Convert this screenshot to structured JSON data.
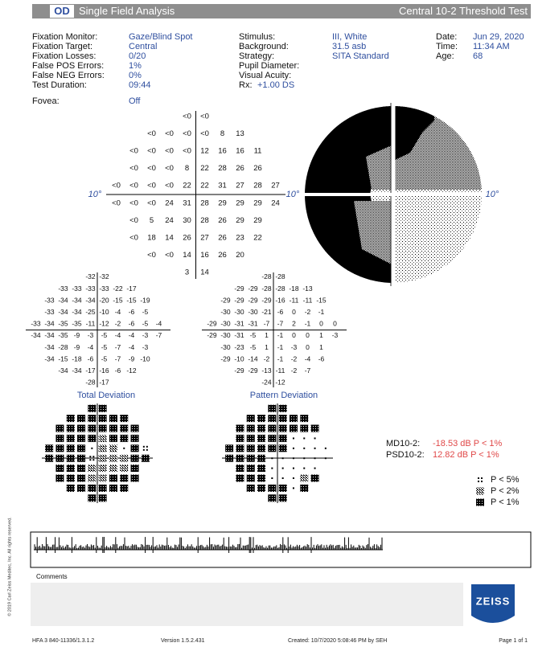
{
  "header": {
    "eye": "OD",
    "title": "Single Field Analysis",
    "test": "Central 10-2 Threshold Test"
  },
  "info": [
    [
      {
        "label": "Fixation Monitor:",
        "value": "Gaze/Blind Spot"
      },
      {
        "label": "Fixation Target:",
        "value": "Central"
      },
      {
        "label": "Fixation Losses:",
        "value": "0/20"
      },
      {
        "label": "False POS Errors:",
        "value": "1%"
      },
      {
        "label": "False NEG Errors:",
        "value": "0%"
      },
      {
        "label": "Test Duration:",
        "value": "09:44"
      }
    ],
    [
      {
        "label": "Stimulus:",
        "value": "III, White"
      },
      {
        "label": "Background:",
        "value": "31.5 asb"
      },
      {
        "label": "Strategy:",
        "value": "SITA Standard"
      },
      {
        "label": "Pupil Diameter:"
      },
      {
        "label": "Visual Acuity:"
      },
      {
        "label": "Rx:",
        "value": "+1.00 DS"
      }
    ],
    [
      {
        "label": "Date:",
        "value": "Jun 29, 2020"
      },
      {
        "label": "Time:",
        "value": "11:34 AM"
      },
      {
        "label": "Age:",
        "value": "68"
      }
    ]
  ],
  "fovea": {
    "label": "Fovea:",
    "value": "Off"
  },
  "degree_label": "10°",
  "threshold": [
    [
      "<0",
      "<0"
    ],
    [
      "<0",
      "<0",
      "<0",
      "<0",
      8,
      13
    ],
    [
      "<0",
      "<0",
      "<0",
      "<0",
      12,
      16,
      16,
      11
    ],
    [
      "<0",
      "<0",
      "<0",
      8,
      22,
      28,
      26,
      26
    ],
    [
      "<0",
      "<0",
      "<0",
      "<0",
      22,
      22,
      31,
      27,
      28,
      27
    ],
    [
      "<0",
      "<0",
      "<0",
      24,
      31,
      28,
      29,
      29,
      29,
      24
    ],
    [
      "<0",
      5,
      24,
      30,
      28,
      26,
      29,
      29
    ],
    [
      "<0",
      18,
      14,
      26,
      27,
      26,
      23,
      22
    ],
    [
      "<0",
      "<0",
      14,
      16,
      26,
      20
    ],
    [
      3,
      14
    ]
  ],
  "total_deviation": {
    "label": "Total Deviation",
    "values": [
      [
        -32,
        -32
      ],
      [
        -33,
        -33,
        -33,
        -33,
        -22,
        -17
      ],
      [
        -33,
        -34,
        -34,
        -34,
        -20,
        -15,
        -15,
        -19
      ],
      [
        -33,
        -34,
        -34,
        -25,
        -10,
        -4,
        -6,
        -5
      ],
      [
        -33,
        -34,
        -35,
        -35,
        -11,
        -12,
        -2,
        -6,
        -5,
        -4
      ],
      [
        -34,
        -34,
        -35,
        -9,
        -3,
        -5,
        -4,
        -4,
        -3,
        -7
      ],
      [
        -34,
        -28,
        -9,
        -4,
        -5,
        -7,
        -4,
        -3
      ],
      [
        -34,
        -15,
        -18,
        -6,
        -5,
        -7,
        -9,
        -10
      ],
      [
        -34,
        -34,
        -17,
        -16,
        -6,
        -12
      ],
      [
        -28,
        -17
      ]
    ],
    "probability": [
      [
        1,
        1
      ],
      [
        1,
        1,
        1,
        1,
        1,
        1
      ],
      [
        1,
        1,
        1,
        1,
        1,
        1,
        1,
        1
      ],
      [
        1,
        1,
        1,
        1,
        2,
        1,
        1,
        1
      ],
      [
        1,
        1,
        1,
        1,
        null,
        2,
        2,
        null,
        1,
        5
      ],
      [
        1,
        1,
        1,
        1,
        5,
        2,
        2,
        2,
        1,
        1
      ],
      [
        1,
        1,
        1,
        2,
        2,
        2,
        2,
        1
      ],
      [
        1,
        1,
        1,
        2,
        2,
        1,
        1,
        1
      ],
      [
        1,
        1,
        1,
        1,
        1,
        1
      ],
      [
        1,
        1
      ]
    ]
  },
  "pattern_deviation": {
    "label": "Pattern Deviation",
    "values": [
      [
        -28,
        -28
      ],
      [
        -29,
        -29,
        -28,
        -28,
        -18,
        -13
      ],
      [
        -29,
        -29,
        -29,
        -29,
        -16,
        -11,
        -11,
        -15
      ],
      [
        -30,
        -30,
        -30,
        -21,
        -6,
        0,
        -2,
        -1
      ],
      [
        -29,
        -30,
        -31,
        -31,
        -7,
        -7,
        2,
        -1,
        0,
        0
      ],
      [
        -29,
        -30,
        -31,
        -5,
        1,
        -1,
        0,
        0,
        1,
        -3
      ],
      [
        -30,
        -23,
        -5,
        1,
        -1,
        -3,
        0,
        1
      ],
      [
        -29,
        -10,
        -14,
        -2,
        -1,
        -2,
        -4,
        -6
      ],
      [
        -29,
        -29,
        -13,
        -11,
        -2,
        -7
      ],
      [
        -24,
        -12
      ]
    ],
    "probability": [
      [
        1,
        1
      ],
      [
        1,
        1,
        1,
        1,
        1,
        1
      ],
      [
        1,
        1,
        1,
        1,
        1,
        1,
        1,
        1
      ],
      [
        1,
        1,
        1,
        1,
        1,
        null,
        null,
        null
      ],
      [
        1,
        1,
        1,
        1,
        1,
        1,
        null,
        null,
        null,
        null
      ],
      [
        1,
        1,
        1,
        1,
        null,
        null,
        null,
        null,
        null,
        null
      ],
      [
        1,
        1,
        1,
        null,
        null,
        null,
        null,
        null
      ],
      [
        1,
        1,
        1,
        null,
        null,
        null,
        2,
        1
      ],
      [
        1,
        1,
        1,
        1,
        null,
        1
      ],
      [
        1,
        1
      ]
    ]
  },
  "indices": [
    {
      "label": "MD10-2:",
      "value": "-18.53 dB P < 1%"
    },
    {
      "label": "PSD10-2:",
      "value": "12.82 dB P < 1%"
    }
  ],
  "legend": [
    {
      "symbol": 5,
      "label": "P < 5%"
    },
    {
      "symbol": 2,
      "label": "P < 2%"
    },
    {
      "symbol": 1,
      "label": "P < 1%"
    }
  ],
  "comments_label": "Comments",
  "logo": "ZEISS",
  "copyright": "© 2019 Carl Zeiss Meditec, Inc. All rights reserved.",
  "footer": [
    "HFA 3 840-11336/1.3.1.2",
    "Version 1.5.2.431",
    "Created: 10/7/2020 5:08:46 PM by SEH",
    "Page 1 of 1"
  ]
}
